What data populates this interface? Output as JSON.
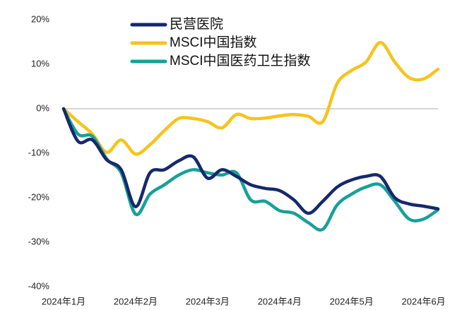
{
  "chart_data": {
    "type": "line",
    "categories": [
      "2024年1月",
      null,
      null,
      null,
      null,
      "2024年2月",
      null,
      null,
      null,
      null,
      "2024年3月",
      null,
      null,
      null,
      null,
      "2024年4月",
      null,
      null,
      null,
      null,
      "2024年5月",
      null,
      null,
      null,
      null,
      "2024年6月",
      null
    ],
    "series": [
      {
        "name": "民营医院",
        "color": "#15296b",
        "values": [
          0,
          -7.3,
          -7,
          -11.5,
          -13.7,
          -22,
          -14.4,
          -13.7,
          -11.7,
          -10.8,
          -15.6,
          -13.7,
          -15.2,
          -17.1,
          -17.9,
          -18.4,
          -20.5,
          -23.5,
          -20.8,
          -17.6,
          -16,
          -15.2,
          -15.2,
          -20,
          -21.4,
          -21.9,
          -22.5
        ]
      },
      {
        "name": "MSCI中国指数",
        "color": "#f7c31c",
        "values": [
          0,
          -2.9,
          -5.7,
          -9.8,
          -7,
          -10.2,
          -8.1,
          -4.9,
          -2.2,
          -2.2,
          -2.9,
          -4.3,
          -1.3,
          -2.2,
          -2.1,
          -1.6,
          -1.3,
          -1.7,
          -2.9,
          5.7,
          8.6,
          10.5,
          14.9,
          10.5,
          7,
          6.7,
          8.9
        ]
      },
      {
        "name": "MSCI中国医药卫生指数",
        "color": "#17a09a",
        "values": [
          0,
          -5.7,
          -6.2,
          -11.3,
          -14.4,
          -23.7,
          -19.2,
          -17.1,
          -14.9,
          -13.7,
          -14.4,
          -14.9,
          -14.4,
          -20.5,
          -20.8,
          -22.9,
          -23.5,
          -25.6,
          -27.1,
          -21.6,
          -19.2,
          -17.6,
          -17.1,
          -20.8,
          -24.8,
          -24.8,
          -22.7
        ]
      }
    ],
    "ylim": [
      -40,
      20
    ],
    "yticks": [
      {
        "value": -40,
        "label": "-40%"
      },
      {
        "value": -30,
        "label": "-30%"
      },
      {
        "value": -20,
        "label": "-20%"
      },
      {
        "value": -10,
        "label": "-10%"
      },
      {
        "value": 0,
        "label": "0%"
      },
      {
        "value": 10,
        "label": "10%"
      },
      {
        "value": 20,
        "label": "20%"
      }
    ],
    "grid": false,
    "zero_line": true,
    "legend": "top-left"
  }
}
